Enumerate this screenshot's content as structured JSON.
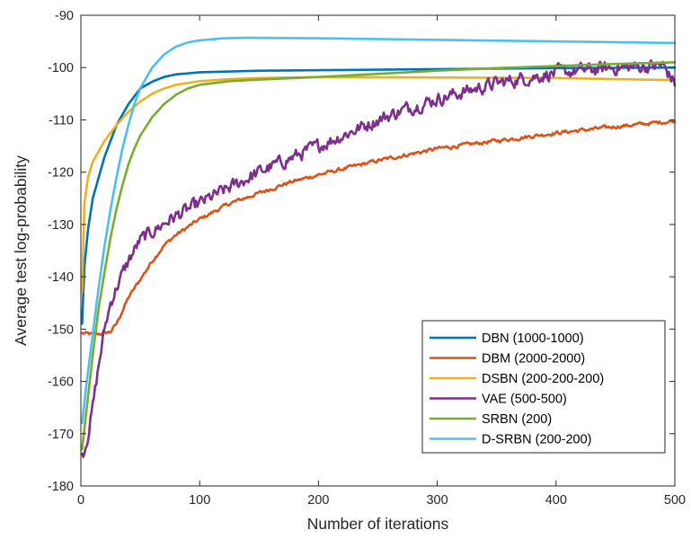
{
  "chart_data": {
    "type": "line",
    "title": "",
    "xlabel": "Number of iterations",
    "ylabel": "Average test log-probability",
    "xlim": [
      0,
      500
    ],
    "ylim": [
      -180,
      -90
    ],
    "xticks": [
      "0",
      "100",
      "200",
      "300",
      "400",
      "500"
    ],
    "yticks": [
      "-90",
      "-100",
      "-110",
      "-120",
      "-130",
      "-140",
      "-150",
      "-160",
      "-170",
      "-180"
    ],
    "grid": false,
    "legend_position": "bottom-right",
    "series": [
      {
        "name": "DBN (1000-1000)",
        "color": "#0072BD",
        "noise": 0,
        "points": [
          [
            1,
            -149
          ],
          [
            3,
            -138
          ],
          [
            6,
            -131
          ],
          [
            10,
            -125
          ],
          [
            15,
            -121
          ],
          [
            20,
            -117
          ],
          [
            25,
            -114
          ],
          [
            30,
            -111
          ],
          [
            35,
            -109
          ],
          [
            40,
            -107
          ],
          [
            45,
            -105.5
          ],
          [
            50,
            -104
          ],
          [
            60,
            -102.7
          ],
          [
            70,
            -101.8
          ],
          [
            80,
            -101.3
          ],
          [
            100,
            -100.9
          ],
          [
            150,
            -100.6
          ],
          [
            200,
            -100.5
          ],
          [
            300,
            -100.3
          ],
          [
            400,
            -100.1
          ],
          [
            500,
            -100
          ]
        ]
      },
      {
        "name": "DBM (2000-2000)",
        "color": "#D95319",
        "noise": 0.3,
        "points": [
          [
            1,
            -150.8
          ],
          [
            10,
            -151
          ],
          [
            20,
            -150.8
          ],
          [
            25,
            -150.5
          ],
          [
            30,
            -149
          ],
          [
            35,
            -146.5
          ],
          [
            40,
            -144
          ],
          [
            50,
            -140.5
          ],
          [
            60,
            -137
          ],
          [
            70,
            -134
          ],
          [
            80,
            -132
          ],
          [
            90,
            -130.5
          ],
          [
            100,
            -129
          ],
          [
            125,
            -126
          ],
          [
            150,
            -124
          ],
          [
            175,
            -122
          ],
          [
            200,
            -120.5
          ],
          [
            250,
            -117.8
          ],
          [
            300,
            -115.5
          ],
          [
            350,
            -114
          ],
          [
            400,
            -112.5
          ],
          [
            450,
            -111.3
          ],
          [
            500,
            -110.2
          ]
        ]
      },
      {
        "name": "DSBN (200-200-200)",
        "color": "#EDB120",
        "noise": 0,
        "points": [
          [
            1,
            -143
          ],
          [
            3,
            -126
          ],
          [
            6,
            -121
          ],
          [
            10,
            -118
          ],
          [
            15,
            -116
          ],
          [
            20,
            -114
          ],
          [
            30,
            -111
          ],
          [
            40,
            -108.5
          ],
          [
            50,
            -106.5
          ],
          [
            60,
            -105
          ],
          [
            70,
            -104
          ],
          [
            80,
            -103.3
          ],
          [
            100,
            -102.6
          ],
          [
            125,
            -102.2
          ],
          [
            150,
            -102
          ],
          [
            200,
            -101.8
          ],
          [
            300,
            -101.9
          ],
          [
            400,
            -102
          ],
          [
            500,
            -102.4
          ]
        ]
      },
      {
        "name": "VAE (500-500)",
        "color": "#7E2F8E",
        "noise": 1.1,
        "points": [
          [
            1,
            -174
          ],
          [
            3,
            -173
          ],
          [
            6,
            -170
          ],
          [
            10,
            -165
          ],
          [
            15,
            -157
          ],
          [
            20,
            -150
          ],
          [
            25,
            -145
          ],
          [
            30,
            -142
          ],
          [
            40,
            -137
          ],
          [
            50,
            -133
          ],
          [
            75,
            -129
          ],
          [
            100,
            -126
          ],
          [
            125,
            -123
          ],
          [
            150,
            -120
          ],
          [
            175,
            -117.5
          ],
          [
            200,
            -115
          ],
          [
            225,
            -112.5
          ],
          [
            250,
            -110
          ],
          [
            275,
            -107.8
          ],
          [
            300,
            -106
          ],
          [
            325,
            -104.5
          ],
          [
            350,
            -103
          ],
          [
            375,
            -102
          ],
          [
            400,
            -101
          ],
          [
            425,
            -100.5
          ],
          [
            450,
            -100
          ],
          [
            475,
            -99.8
          ],
          [
            490,
            -99.6
          ],
          [
            500,
            -103
          ]
        ]
      },
      {
        "name": "SRBN (200)",
        "color": "#77AC30",
        "noise": 0,
        "points": [
          [
            1,
            -173
          ],
          [
            5,
            -165
          ],
          [
            10,
            -155
          ],
          [
            15,
            -146
          ],
          [
            20,
            -139
          ],
          [
            25,
            -132.5
          ],
          [
            30,
            -127
          ],
          [
            35,
            -122.5
          ],
          [
            40,
            -118.5
          ],
          [
            45,
            -115.5
          ],
          [
            50,
            -113
          ],
          [
            60,
            -109.5
          ],
          [
            70,
            -107
          ],
          [
            80,
            -105.2
          ],
          [
            90,
            -104
          ],
          [
            100,
            -103.3
          ],
          [
            125,
            -102.6
          ],
          [
            150,
            -102.3
          ],
          [
            200,
            -101.8
          ],
          [
            250,
            -101.2
          ],
          [
            300,
            -100.6
          ],
          [
            350,
            -100.1
          ],
          [
            400,
            -99.7
          ],
          [
            450,
            -99.3
          ],
          [
            500,
            -99
          ]
        ]
      },
      {
        "name": "D-SRBN (200-200)",
        "color": "#4DBEEE",
        "noise": 0,
        "points": [
          [
            1,
            -168
          ],
          [
            5,
            -160
          ],
          [
            10,
            -151
          ],
          [
            15,
            -142
          ],
          [
            20,
            -134
          ],
          [
            25,
            -127
          ],
          [
            30,
            -121
          ],
          [
            35,
            -115.5
          ],
          [
            40,
            -111
          ],
          [
            45,
            -107
          ],
          [
            50,
            -104
          ],
          [
            60,
            -100
          ],
          [
            70,
            -97.5
          ],
          [
            80,
            -96
          ],
          [
            90,
            -95.2
          ],
          [
            100,
            -94.8
          ],
          [
            120,
            -94.4
          ],
          [
            140,
            -94.3
          ],
          [
            200,
            -94.4
          ],
          [
            300,
            -94.7
          ],
          [
            400,
            -95
          ],
          [
            500,
            -95.3
          ]
        ]
      }
    ]
  }
}
